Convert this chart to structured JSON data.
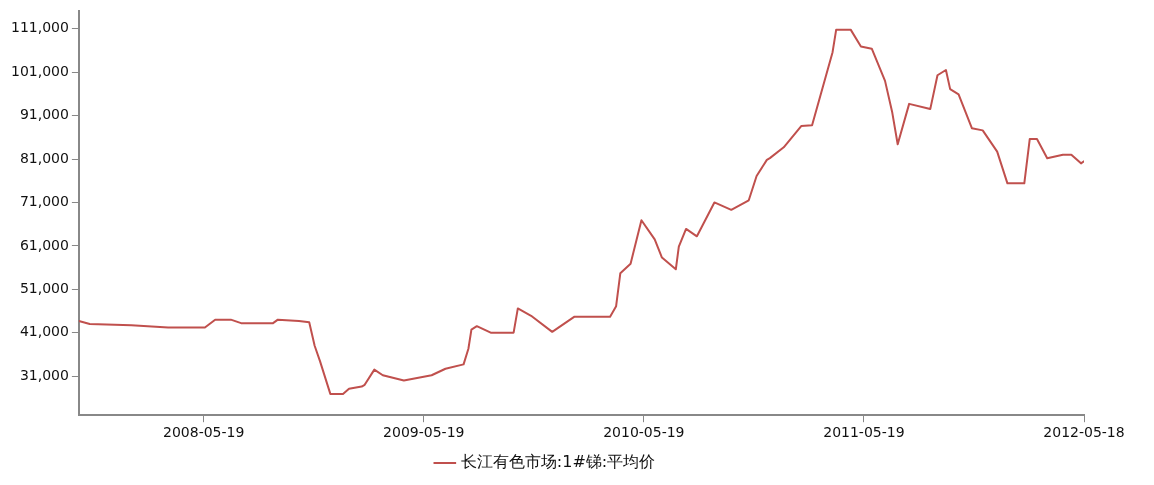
{
  "chart_data": {
    "type": "line",
    "x": [
      "2007-10-25",
      "2007-11-12",
      "2008-01-20",
      "2008-03-21",
      "2008-05-21",
      "2008-06-07",
      "2008-07-03",
      "2008-07-20",
      "2008-09-11",
      "2008-09-19",
      "2008-10-24",
      "2008-11-10",
      "2008-11-19",
      "2008-11-28",
      "2008-12-15",
      "2009-01-05",
      "2009-01-15",
      "2009-02-05",
      "2009-02-10",
      "2009-02-26",
      "2009-03-12",
      "2009-04-16",
      "2009-06-01",
      "2009-06-24",
      "2009-07-24",
      "2009-08-01",
      "2009-08-06",
      "2009-08-15",
      "2009-09-07",
      "2009-10-15",
      "2009-10-22",
      "2009-11-13",
      "2009-12-18",
      "2010-01-24",
      "2010-03-24",
      "2010-04-03",
      "2010-04-10",
      "2010-04-27",
      "2010-05-15",
      "2010-06-06",
      "2010-06-18",
      "2010-07-11",
      "2010-07-16",
      "2010-07-28",
      "2010-08-15",
      "2010-09-13",
      "2010-10-11",
      "2010-11-09",
      "2010-11-22",
      "2010-12-09",
      "2010-12-14",
      "2011-01-06",
      "2011-02-04",
      "2011-02-22",
      "2011-03-28",
      "2011-04-03",
      "2011-04-27",
      "2011-05-14",
      "2011-06-01",
      "2011-06-23",
      "2011-07-05",
      "2011-07-14",
      "2011-08-02",
      "2011-09-06",
      "2011-09-18",
      "2011-10-02",
      "2011-10-09",
      "2011-10-23",
      "2011-11-14",
      "2011-12-02",
      "2011-12-26",
      "2012-01-12",
      "2012-02-09",
      "2012-02-18",
      "2012-03-01",
      "2012-03-18",
      "2012-04-13",
      "2012-04-27",
      "2012-05-13",
      "2012-05-18"
    ],
    "series": [
      {
        "name": "长江有色市场:1#锑:平均价",
        "color": "#c0504d",
        "values": [
          43700,
          43000,
          42700,
          42200,
          42200,
          44000,
          44000,
          43200,
          43200,
          44000,
          43700,
          43400,
          38000,
          34400,
          26900,
          26900,
          28100,
          28600,
          29000,
          32500,
          31200,
          30000,
          31200,
          32700,
          33700,
          37300,
          41700,
          42500,
          41000,
          41000,
          46600,
          44900,
          41200,
          44700,
          44700,
          47100,
          54700,
          56900,
          66900,
          62500,
          58300,
          55600,
          60800,
          64900,
          63200,
          71000,
          69300,
          71500,
          77100,
          80800,
          81200,
          83700,
          88600,
          88800,
          105600,
          110800,
          110800,
          106900,
          106400,
          99000,
          91700,
          84400,
          93700,
          92500,
          100300,
          101500,
          97100,
          95900,
          88100,
          87600,
          82700,
          75400,
          75400,
          85600,
          85600,
          81200,
          82000,
          82000,
          80000,
          80500
        ]
      }
    ],
    "xlim": [
      "2007-10-25",
      "2012-05-18"
    ],
    "xticks": [
      "2008-05-19",
      "2009-05-19",
      "2010-05-19",
      "2011-05-19",
      "2012-05-18"
    ],
    "ylim": [
      22000,
      115000
    ],
    "yticks": [
      {
        "value": 31000,
        "label": "31,000"
      },
      {
        "value": 41000,
        "label": "41,000"
      },
      {
        "value": 51000,
        "label": "51,000"
      },
      {
        "value": 61000,
        "label": "61,000"
      },
      {
        "value": 71000,
        "label": "71,000"
      },
      {
        "value": 81000,
        "label": "81,000"
      },
      {
        "value": 91000,
        "label": "91,000"
      },
      {
        "value": 101000,
        "label": "101,000"
      },
      {
        "value": 111000,
        "label": "111,000"
      }
    ],
    "grid": false,
    "legend": "bottom",
    "marker": "none",
    "line_style": "solid"
  }
}
